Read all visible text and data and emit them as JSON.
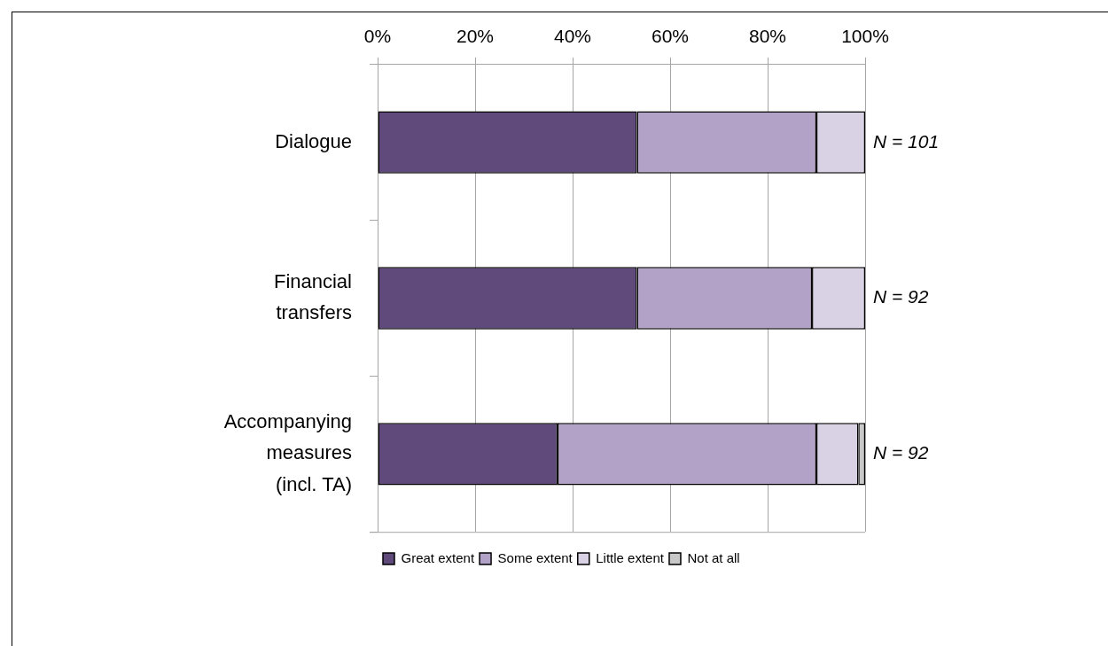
{
  "chart_data": {
    "type": "bar",
    "orientation": "horizontal",
    "stacked": true,
    "categories": [
      "Dialogue",
      "Financial transfers",
      "Accompanying measures (incl. TA)"
    ],
    "series": [
      {
        "name": "Great extent",
        "color": "#604a7b",
        "values": [
          53.2,
          53.2,
          36.9
        ]
      },
      {
        "name": "Some extent",
        "color": "#b3a2c7",
        "values": [
          36.8,
          35.9,
          53.1
        ]
      },
      {
        "name": "Little extent",
        "color": "#d9d2e4",
        "values": [
          10,
          10.9,
          8.6
        ]
      },
      {
        "name": "Not at all",
        "color": "#c8c8c8",
        "values": [
          0,
          0,
          1.4
        ]
      }
    ],
    "xlim": [
      0,
      100
    ],
    "xticks": [
      {
        "value": 0,
        "label": "0%"
      },
      {
        "value": 20,
        "label": "20%"
      },
      {
        "value": 40,
        "label": "40%"
      },
      {
        "value": 60,
        "label": "60%"
      },
      {
        "value": 80,
        "label": "80%"
      },
      {
        "value": 100,
        "label": "100%"
      }
    ],
    "grid": "x",
    "legend": "bottom",
    "annotations": [
      "N = 101",
      "N = 92",
      "N = 92"
    ]
  }
}
